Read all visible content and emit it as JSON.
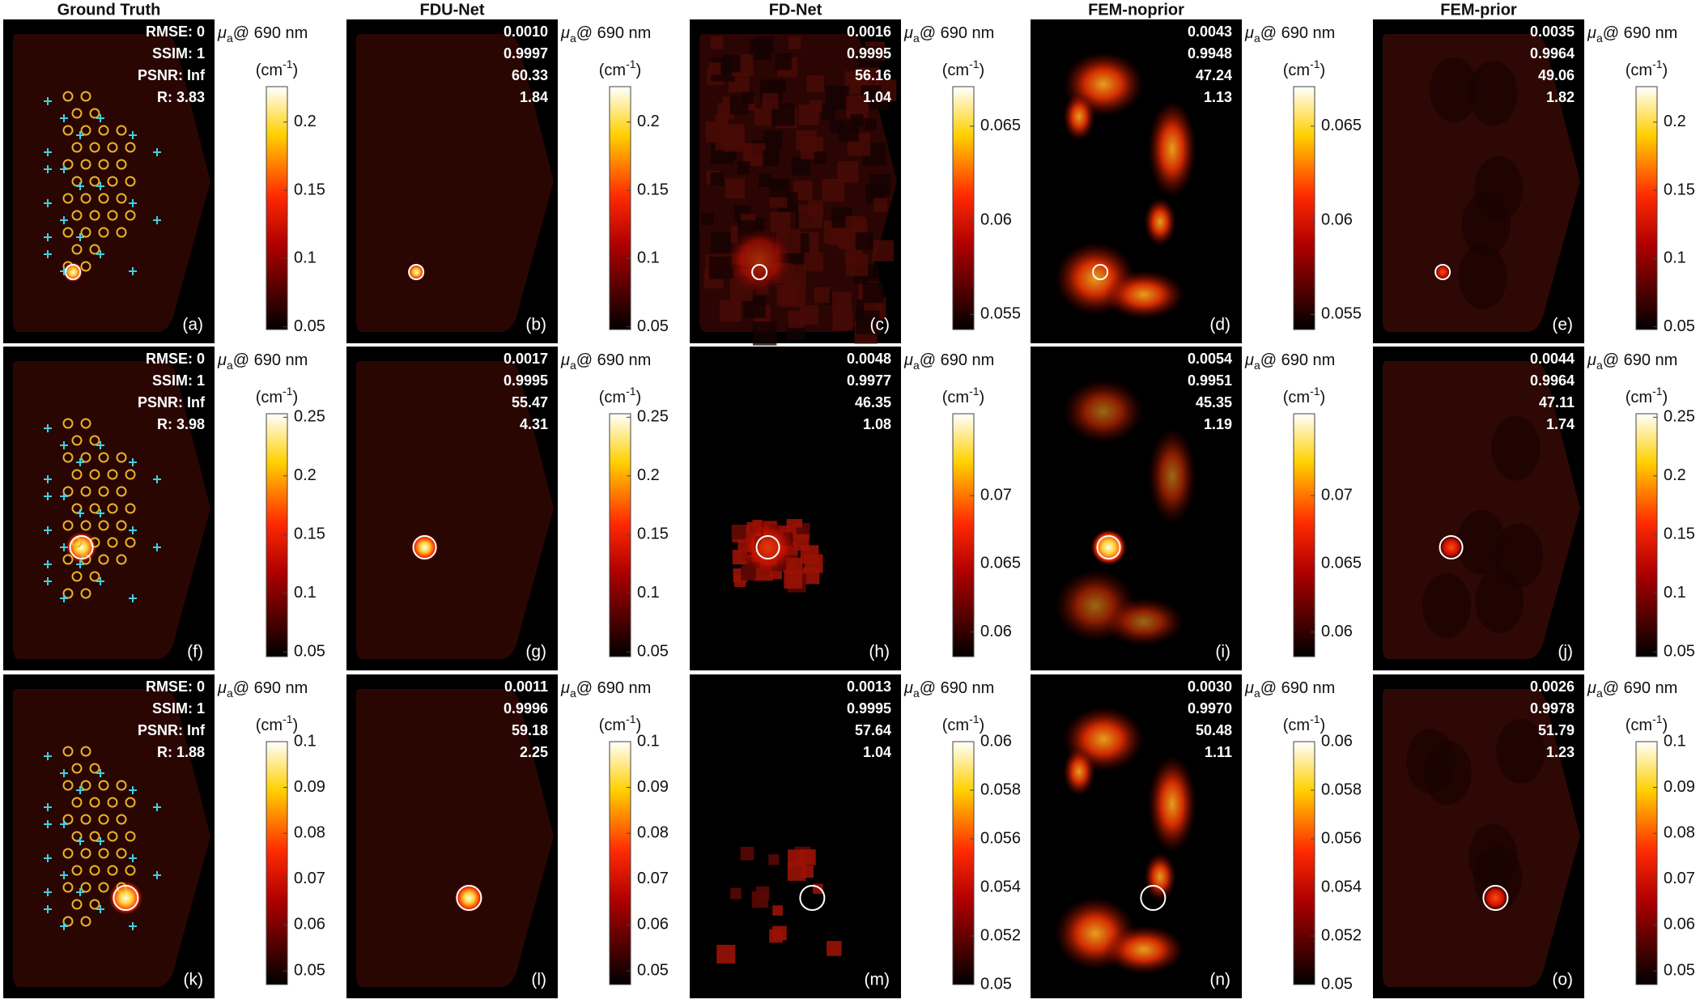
{
  "columns": [
    "Ground Truth",
    "FDU-Net",
    "FD-Net",
    "FEM-noprior",
    "FEM-prior"
  ],
  "colorbar_label": {
    "symbol": "μ",
    "subscript": "a",
    "text": "@ 690 nm"
  },
  "colorbar_unit": {
    "base": "(cm",
    "exponent": "-1",
    "close": ")"
  },
  "rows": [
    {
      "panels": [
        {
          "label": "(a)",
          "metrics": [
            "RMSE: 0",
            "SSIM: 1",
            "PSNR: Inf",
            "R: 3.83"
          ],
          "colorbar": {
            "lim": [
              0.048,
              0.226
            ],
            "ticks": [
              0.05,
              0.1,
              0.15,
              0.2
            ]
          }
        },
        {
          "label": "(b)",
          "metrics": [
            "0.0010",
            "0.9997",
            "60.33",
            "1.84"
          ],
          "colorbar": {
            "lim": [
              0.048,
              0.226
            ],
            "ticks": [
              0.05,
              0.1,
              0.15,
              0.2
            ]
          }
        },
        {
          "label": "(c)",
          "metrics": [
            "0.0016",
            "0.9995",
            "56.16",
            "1.04"
          ],
          "colorbar": {
            "lim": [
              0.0542,
              0.0671
            ],
            "ticks": [
              0.055,
              0.06,
              0.065
            ]
          }
        },
        {
          "label": "(d)",
          "metrics": [
            "0.0043",
            "0.9948",
            "47.24",
            "1.13"
          ],
          "colorbar": {
            "lim": [
              0.0542,
              0.0671
            ],
            "ticks": [
              0.055,
              0.06,
              0.065
            ]
          }
        },
        {
          "label": "(e)",
          "metrics": [
            "0.0035",
            "0.9964",
            "49.06",
            "1.82"
          ],
          "colorbar": {
            "lim": [
              0.048,
              0.226
            ],
            "ticks": [
              0.05,
              0.1,
              0.15,
              0.2
            ]
          }
        }
      ]
    },
    {
      "panels": [
        {
          "label": "(f)",
          "metrics": [
            "RMSE: 0",
            "SSIM: 1",
            "PSNR: Inf",
            "R: 3.98"
          ],
          "colorbar": {
            "lim": [
              0.046,
              0.253
            ],
            "ticks": [
              0.05,
              0.1,
              0.15,
              0.2,
              0.25
            ]
          }
        },
        {
          "label": "(g)",
          "metrics": [
            "0.0017",
            "0.9995",
            "55.47",
            "4.31"
          ],
          "colorbar": {
            "lim": [
              0.046,
              0.253
            ],
            "ticks": [
              0.05,
              0.1,
              0.15,
              0.2,
              0.25
            ]
          }
        },
        {
          "label": "(h)",
          "metrics": [
            "0.0048",
            "0.9977",
            "46.35",
            "1.08"
          ],
          "colorbar": {
            "lim": [
              0.0582,
              0.076
            ],
            "ticks": [
              0.06,
              0.065,
              0.07
            ]
          }
        },
        {
          "label": "(i)",
          "metrics": [
            "0.0054",
            "0.9951",
            "45.35",
            "1.19"
          ],
          "colorbar": {
            "lim": [
              0.0582,
              0.076
            ],
            "ticks": [
              0.06,
              0.065,
              0.07
            ]
          }
        },
        {
          "label": "(j)",
          "metrics": [
            "0.0044",
            "0.9964",
            "47.11",
            "1.74"
          ],
          "colorbar": {
            "lim": [
              0.046,
              0.253
            ],
            "ticks": [
              0.05,
              0.1,
              0.15,
              0.2,
              0.25
            ]
          }
        }
      ]
    },
    {
      "panels": [
        {
          "label": "(k)",
          "metrics": [
            "RMSE: 0",
            "SSIM: 1",
            "PSNR: Inf",
            "R: 1.88"
          ],
          "colorbar": {
            "lim": [
              0.047,
              0.1
            ],
            "ticks": [
              0.05,
              0.06,
              0.07,
              0.08,
              0.09,
              0.1
            ]
          }
        },
        {
          "label": "(l)",
          "metrics": [
            "0.0011",
            "0.9996",
            "59.18",
            "2.25"
          ],
          "colorbar": {
            "lim": [
              0.047,
              0.1
            ],
            "ticks": [
              0.05,
              0.06,
              0.07,
              0.08,
              0.09,
              0.1
            ]
          }
        },
        {
          "label": "(m)",
          "metrics": [
            "0.0013",
            "0.9995",
            "57.64",
            "1.04"
          ],
          "colorbar": {
            "lim": [
              0.05,
              0.06
            ],
            "ticks": [
              0.05,
              0.052,
              0.054,
              0.056,
              0.058,
              0.06
            ]
          }
        },
        {
          "label": "(n)",
          "metrics": [
            "0.0030",
            "0.9970",
            "50.48",
            "1.11"
          ],
          "colorbar": {
            "lim": [
              0.05,
              0.06
            ],
            "ticks": [
              0.05,
              0.052,
              0.054,
              0.056,
              0.058,
              0.06
            ]
          }
        },
        {
          "label": "(o)",
          "metrics": [
            "0.0026",
            "0.9978",
            "51.79",
            "1.23"
          ],
          "colorbar": {
            "lim": [
              0.047,
              0.1
            ],
            "ticks": [
              0.05,
              0.06,
              0.07,
              0.08,
              0.09,
              0.1
            ]
          }
        }
      ]
    }
  ]
}
